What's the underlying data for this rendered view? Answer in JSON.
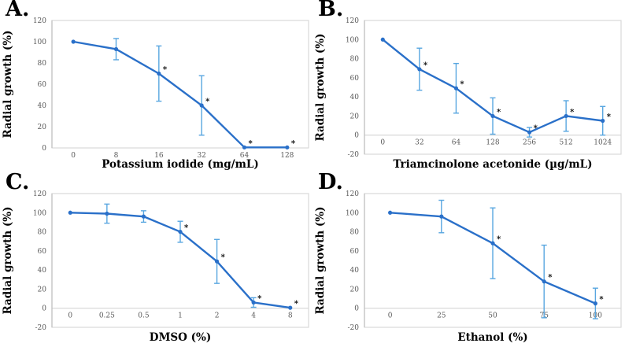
{
  "figure_name": "radial-growth-dose-response-figure",
  "style": {
    "line_color": "#2a70c9",
    "error_bar_color": "#58a6e0",
    "plot_border_color": "#d9d9d9",
    "axis_line_color": "#bfbfbf",
    "zero_line_color": "#d9d9d9",
    "tick_label_color": "#595959",
    "title_color": "#000000",
    "sig_marker": "*"
  },
  "chart_data": [
    {
      "type": "line",
      "panel": "A.",
      "name": "potassium-iodide",
      "xlabel": "Potassium iodide (mg/mL)",
      "ylabel": "Radial growth (%)",
      "ylim": [
        0,
        120
      ],
      "ytick_step": 20,
      "grid": false,
      "legend": false,
      "categories": [
        "0",
        "8",
        "16",
        "32",
        "64",
        "128"
      ],
      "values": [
        100,
        93,
        70,
        40,
        0.5,
        0.5
      ],
      "error": [
        0,
        10,
        26,
        28,
        0,
        0
      ],
      "significant": [
        false,
        false,
        true,
        true,
        true,
        true
      ]
    },
    {
      "type": "line",
      "panel": "B.",
      "name": "triamcinolone-acetonide",
      "xlabel": "Triamcinolone acetonide (µg/mL)",
      "ylabel": "Radial growth (%)",
      "ylim": [
        -20,
        120
      ],
      "ytick_step": 20,
      "grid": false,
      "legend": false,
      "categories": [
        "0",
        "32",
        "64",
        "128",
        "256",
        "512",
        "1024"
      ],
      "values": [
        100,
        69,
        49,
        20,
        3,
        20,
        15
      ],
      "error": [
        0,
        22,
        26,
        19,
        5,
        16,
        15
      ],
      "significant": [
        false,
        true,
        true,
        true,
        true,
        true,
        true
      ]
    },
    {
      "type": "line",
      "panel": "C.",
      "name": "dmso",
      "xlabel": "DMSO (%)",
      "ylabel": "Radial growth (%)",
      "ylim": [
        -20,
        120
      ],
      "ytick_step": 20,
      "grid": false,
      "legend": false,
      "categories": [
        "0",
        "0.25",
        "0.5",
        "1",
        "2",
        "4",
        "8"
      ],
      "values": [
        100,
        99,
        96,
        80,
        49,
        6,
        0.5
      ],
      "error": [
        0,
        10,
        6,
        11,
        23,
        5,
        0
      ],
      "significant": [
        false,
        false,
        false,
        true,
        true,
        true,
        true
      ]
    },
    {
      "type": "line",
      "panel": "D.",
      "name": "ethanol",
      "xlabel": "Ethanol (%)",
      "ylabel": "Radial growth (%)",
      "ylim": [
        -20,
        120
      ],
      "ytick_step": 20,
      "grid": false,
      "legend": false,
      "categories": [
        "0",
        "25",
        "50",
        "75",
        "100"
      ],
      "values": [
        100,
        96,
        68,
        28,
        5
      ],
      "error": [
        0,
        17,
        37,
        38,
        16
      ],
      "significant": [
        false,
        false,
        true,
        true,
        true
      ]
    }
  ]
}
